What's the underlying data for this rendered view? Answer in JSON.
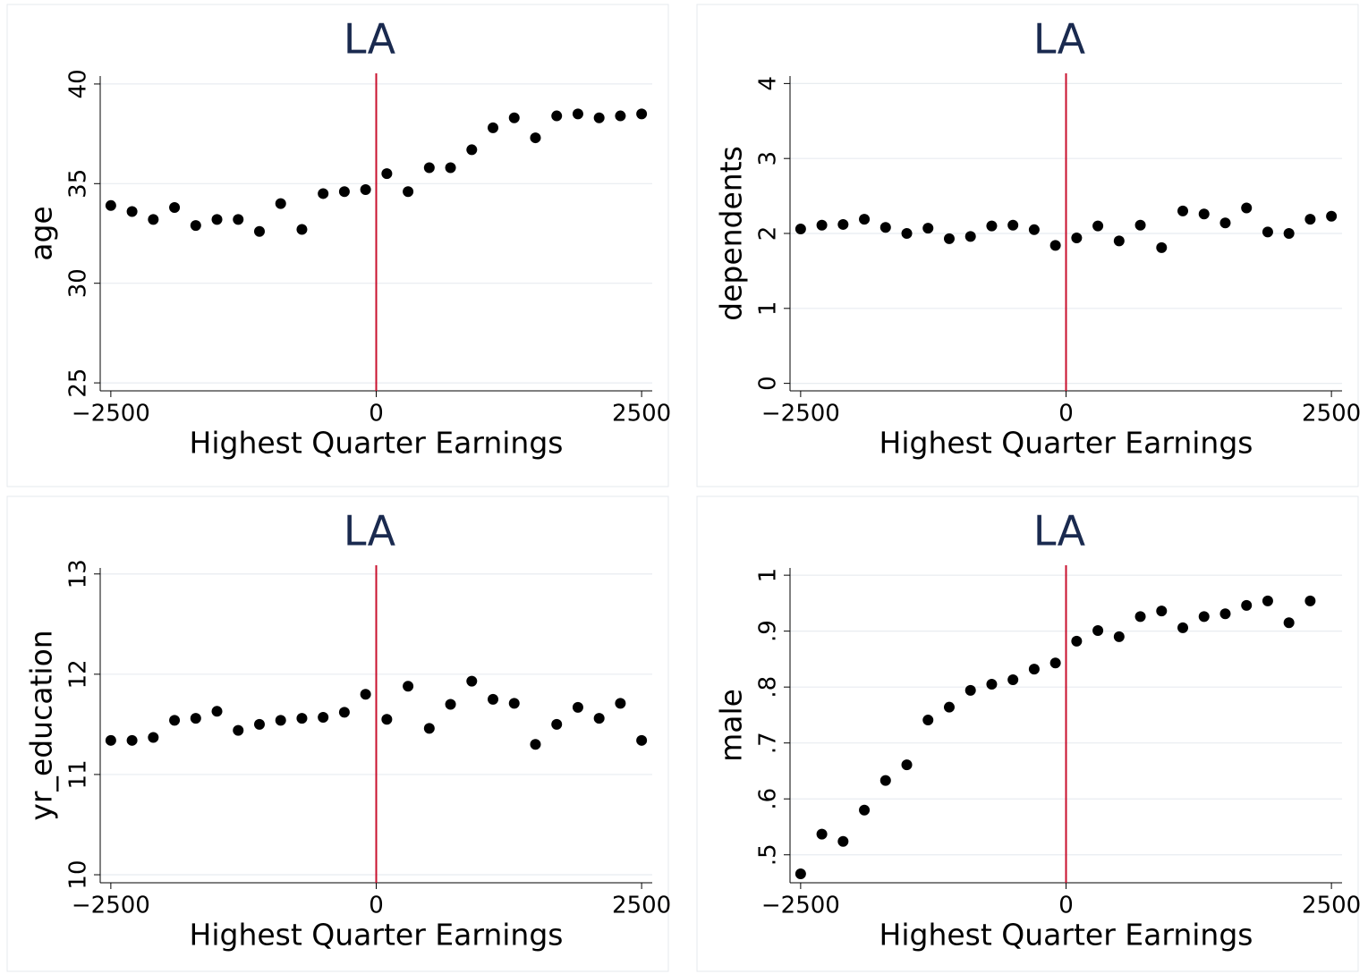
{
  "chart_data": [
    {
      "type": "scatter",
      "title": "LA",
      "x_label": "Highest Quarter Earnings",
      "y_label": "age",
      "color": "#000000",
      "xline": 0,
      "xline_color": "#c8102e",
      "grid": true,
      "x": [
        -2500,
        -2300,
        -2100,
        -1900,
        -1700,
        -1500,
        -1300,
        -1100,
        -900,
        -700,
        -500,
        -300,
        -100,
        100,
        300,
        500,
        700,
        900,
        1100,
        1300,
        1500,
        1700,
        1900,
        2100,
        2300,
        2500
      ],
      "values": [
        33.9,
        33.6,
        33.2,
        33.8,
        32.9,
        33.2,
        33.2,
        32.6,
        34.0,
        32.7,
        34.5,
        34.6,
        34.7,
        35.5,
        34.6,
        35.8,
        35.8,
        36.7,
        37.8,
        38.3,
        37.3,
        38.4,
        38.5,
        38.3,
        38.4,
        38.5
      ],
      "xlim": [
        -2600,
        2600
      ],
      "xticks": [
        {
          "value": -2500,
          "label": "−2500"
        },
        0,
        2500
      ],
      "ylim": [
        24.6,
        40.4
      ],
      "yticks": [
        25,
        30,
        35,
        40
      ]
    },
    {
      "type": "scatter",
      "title": "LA",
      "x_label": "Highest Quarter Earnings",
      "y_label": "dependents",
      "color": "#000000",
      "xline": 0,
      "xline_color": "#c8102e",
      "grid": true,
      "x": [
        -2500,
        -2300,
        -2100,
        -1900,
        -1700,
        -1500,
        -1300,
        -1100,
        -900,
        -700,
        -500,
        -300,
        -100,
        100,
        300,
        500,
        700,
        900,
        1100,
        1300,
        1500,
        1700,
        1900,
        2100,
        2300,
        2500
      ],
      "values": [
        2.06,
        2.11,
        2.12,
        2.19,
        2.08,
        2.0,
        2.07,
        1.93,
        1.96,
        2.1,
        2.11,
        2.05,
        1.84,
        1.94,
        2.1,
        1.9,
        2.11,
        1.81,
        2.3,
        2.26,
        2.14,
        2.34,
        2.02,
        2.0,
        2.19,
        2.23
      ],
      "xlim": [
        -2600,
        2600
      ],
      "xticks": [
        {
          "value": -2500,
          "label": "−2500"
        },
        0,
        2500
      ],
      "ylim": [
        -0.1,
        4.1
      ],
      "yticks": [
        0,
        1,
        2,
        3,
        4
      ]
    },
    {
      "type": "scatter",
      "title": "LA",
      "x_label": "Highest Quarter Earnings",
      "y_label": "yr_education",
      "color": "#000000",
      "xline": 0,
      "xline_color": "#c8102e",
      "grid": true,
      "x": [
        -2500,
        -2300,
        -2100,
        -1900,
        -1700,
        -1500,
        -1300,
        -1100,
        -900,
        -700,
        -500,
        -300,
        -100,
        100,
        300,
        500,
        700,
        900,
        1100,
        1300,
        1500,
        1700,
        1900,
        2100,
        2300,
        2500
      ],
      "values": [
        11.34,
        11.34,
        11.37,
        11.54,
        11.56,
        11.63,
        11.44,
        11.5,
        11.54,
        11.56,
        11.57,
        11.62,
        11.8,
        11.55,
        11.88,
        11.46,
        11.7,
        11.93,
        11.75,
        11.71,
        11.3,
        11.5,
        11.67,
        11.56,
        11.71,
        11.34
      ],
      "xlim": [
        -2600,
        2600
      ],
      "xticks": [
        {
          "value": -2500,
          "label": "−2500"
        },
        0,
        2500
      ],
      "ylim": [
        9.92,
        13.06
      ],
      "yticks": [
        10,
        11,
        12,
        13
      ]
    },
    {
      "type": "scatter",
      "title": "LA",
      "x_label": "Highest Quarter Earnings",
      "y_label": "male",
      "color": "#000000",
      "xline": 0,
      "xline_color": "#c8102e",
      "grid": true,
      "x": [
        -2500,
        -2300,
        -2100,
        -1900,
        -1700,
        -1500,
        -1300,
        -1100,
        -900,
        -700,
        -500,
        -300,
        -100,
        100,
        300,
        500,
        700,
        900,
        1100,
        1300,
        1500,
        1700,
        1900,
        2100,
        2300
      ],
      "values": [
        0.466,
        0.537,
        0.524,
        0.58,
        0.633,
        0.661,
        0.741,
        0.764,
        0.794,
        0.805,
        0.813,
        0.832,
        0.843,
        0.882,
        0.901,
        0.89,
        0.926,
        0.936,
        0.906,
        0.926,
        0.931,
        0.946,
        0.954,
        0.915,
        0.954
      ],
      "xlim": [
        -2600,
        2600
      ],
      "xticks": [
        {
          "value": -2500,
          "label": "−2500"
        },
        0,
        2500
      ],
      "ylim": [
        0.45,
        1.013
      ],
      "yticks": [
        {
          "value": 0.5,
          "label": ".5"
        },
        {
          "value": 0.6,
          "label": ".6"
        },
        {
          "value": 0.7,
          "label": ".7"
        },
        {
          "value": 0.8,
          "label": ".8"
        },
        {
          "value": 0.9,
          "label": ".9"
        },
        1
      ]
    }
  ]
}
